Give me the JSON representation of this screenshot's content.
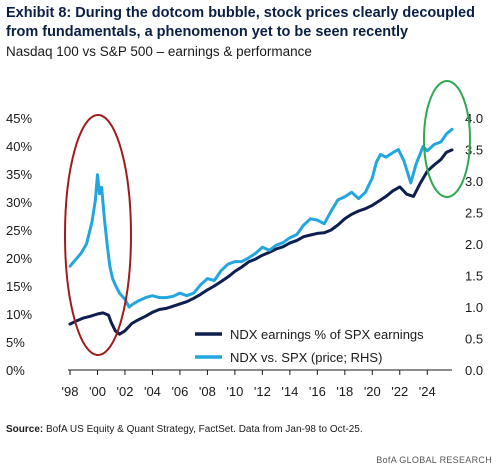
{
  "header": {
    "title": "Exhibit 8: During the dotcom bubble, stock prices clearly decoupled from fundamentals, a phenomenon yet to be seen recently",
    "subtitle": "Nasdaq 100 vs S&P 500 – earnings & performance"
  },
  "footer": {
    "source_label": "Source:",
    "source_text": " BofA US Equity & Quant Strategy, FactSet. Data from Jan-98 to Oct-25.",
    "brand": "BofA GLOBAL RESEARCH"
  },
  "colors": {
    "earnings_line": "#0d1f4f",
    "price_line": "#23a6e0",
    "bubble_circle": "#a01c1c",
    "recent_circle": "#2fa84f"
  },
  "chart_data": {
    "type": "line",
    "x_tick_labels": [
      "'98",
      "'00",
      "'02",
      "'04",
      "'06",
      "'08",
      "'10",
      "'12",
      "'14",
      "'16",
      "'18",
      "'20",
      "'22",
      "'24"
    ],
    "x_range": [
      1998.0,
      2025.8
    ],
    "left_axis": {
      "ticks": [
        "0%",
        "5%",
        "10%",
        "15%",
        "20%",
        "25%",
        "30%",
        "35%",
        "40%",
        "45%"
      ],
      "ylim": [
        0,
        45
      ]
    },
    "right_axis": {
      "ticks": [
        "0.0",
        "0.5",
        "1.0",
        "1.5",
        "2.0",
        "2.5",
        "3.0",
        "3.5",
        "4.0"
      ],
      "ylim": [
        0,
        4.0
      ]
    },
    "series": [
      {
        "name": "NDX earnings % of SPX earnings",
        "axis": "left",
        "x": [
          1998.0,
          1998.5,
          1999.0,
          1999.5,
          2000.0,
          2000.4,
          2000.8,
          2001.0,
          2001.3,
          2001.6,
          2002.0,
          2002.5,
          2003.0,
          2003.5,
          2004.0,
          2004.5,
          2005.0,
          2005.5,
          2006.0,
          2006.5,
          2007.0,
          2007.5,
          2008.0,
          2008.5,
          2009.0,
          2009.3,
          2009.6,
          2010.0,
          2010.5,
          2011.0,
          2011.5,
          2012.0,
          2012.5,
          2013.0,
          2013.5,
          2014.0,
          2014.5,
          2015.0,
          2015.5,
          2016.0,
          2016.5,
          2017.0,
          2017.5,
          2018.0,
          2018.5,
          2019.0,
          2019.5,
          2020.0,
          2020.5,
          2021.0,
          2021.5,
          2022.0,
          2022.5,
          2023.0,
          2023.5,
          2024.0,
          2024.5,
          2025.0,
          2025.4,
          2025.8
        ],
        "values": [
          8.2,
          8.8,
          9.3,
          9.6,
          10.0,
          10.2,
          9.8,
          8.5,
          7.0,
          6.4,
          7.0,
          8.3,
          9.0,
          9.6,
          10.3,
          10.8,
          11.0,
          11.4,
          11.8,
          12.2,
          12.8,
          13.5,
          14.3,
          15.0,
          15.8,
          16.3,
          16.8,
          17.6,
          18.4,
          19.3,
          19.8,
          20.5,
          21.0,
          21.6,
          22.0,
          22.7,
          23.1,
          23.8,
          24.1,
          24.4,
          24.5,
          25.0,
          25.9,
          27.0,
          27.8,
          28.4,
          28.8,
          29.4,
          30.2,
          31.0,
          32.0,
          32.7,
          31.4,
          31.0,
          33.4,
          35.5,
          36.6,
          37.6,
          38.9,
          39.3
        ]
      },
      {
        "name": "NDX vs. SPX (price; RHS)",
        "axis": "right",
        "x": [
          1998.0,
          1998.4,
          1998.8,
          1999.2,
          1999.6,
          1999.85,
          2000.0,
          2000.15,
          2000.3,
          2000.5,
          2000.7,
          2000.9,
          2001.1,
          2001.3,
          2001.6,
          2002.0,
          2002.3,
          2002.6,
          2003.0,
          2003.5,
          2004.0,
          2004.5,
          2005.0,
          2005.5,
          2006.0,
          2006.5,
          2007.0,
          2007.5,
          2008.0,
          2008.5,
          2009.0,
          2009.5,
          2010.0,
          2010.5,
          2011.0,
          2011.5,
          2012.0,
          2012.5,
          2013.0,
          2013.5,
          2014.0,
          2014.5,
          2015.0,
          2015.5,
          2016.0,
          2016.5,
          2017.0,
          2017.5,
          2018.0,
          2018.5,
          2019.0,
          2019.5,
          2020.0,
          2020.3,
          2020.6,
          2021.0,
          2021.5,
          2021.9,
          2022.3,
          2022.8,
          2023.2,
          2023.7,
          2024.0,
          2024.5,
          2025.0,
          2025.4,
          2025.8
        ],
        "values": [
          1.65,
          1.75,
          1.85,
          2.0,
          2.35,
          2.7,
          3.1,
          2.8,
          2.9,
          2.4,
          2.0,
          1.65,
          1.45,
          1.35,
          1.22,
          1.12,
          1.0,
          1.05,
          1.1,
          1.15,
          1.18,
          1.15,
          1.15,
          1.17,
          1.22,
          1.18,
          1.22,
          1.35,
          1.45,
          1.42,
          1.58,
          1.68,
          1.72,
          1.72,
          1.78,
          1.85,
          1.95,
          1.9,
          1.98,
          2.02,
          2.1,
          2.15,
          2.3,
          2.4,
          2.38,
          2.32,
          2.52,
          2.7,
          2.75,
          2.82,
          2.72,
          2.82,
          3.05,
          3.3,
          3.42,
          3.38,
          3.45,
          3.5,
          3.32,
          2.97,
          3.28,
          3.55,
          3.48,
          3.58,
          3.62,
          3.75,
          3.82
        ]
      }
    ],
    "legend_position": "bottom-right",
    "grid": false
  }
}
